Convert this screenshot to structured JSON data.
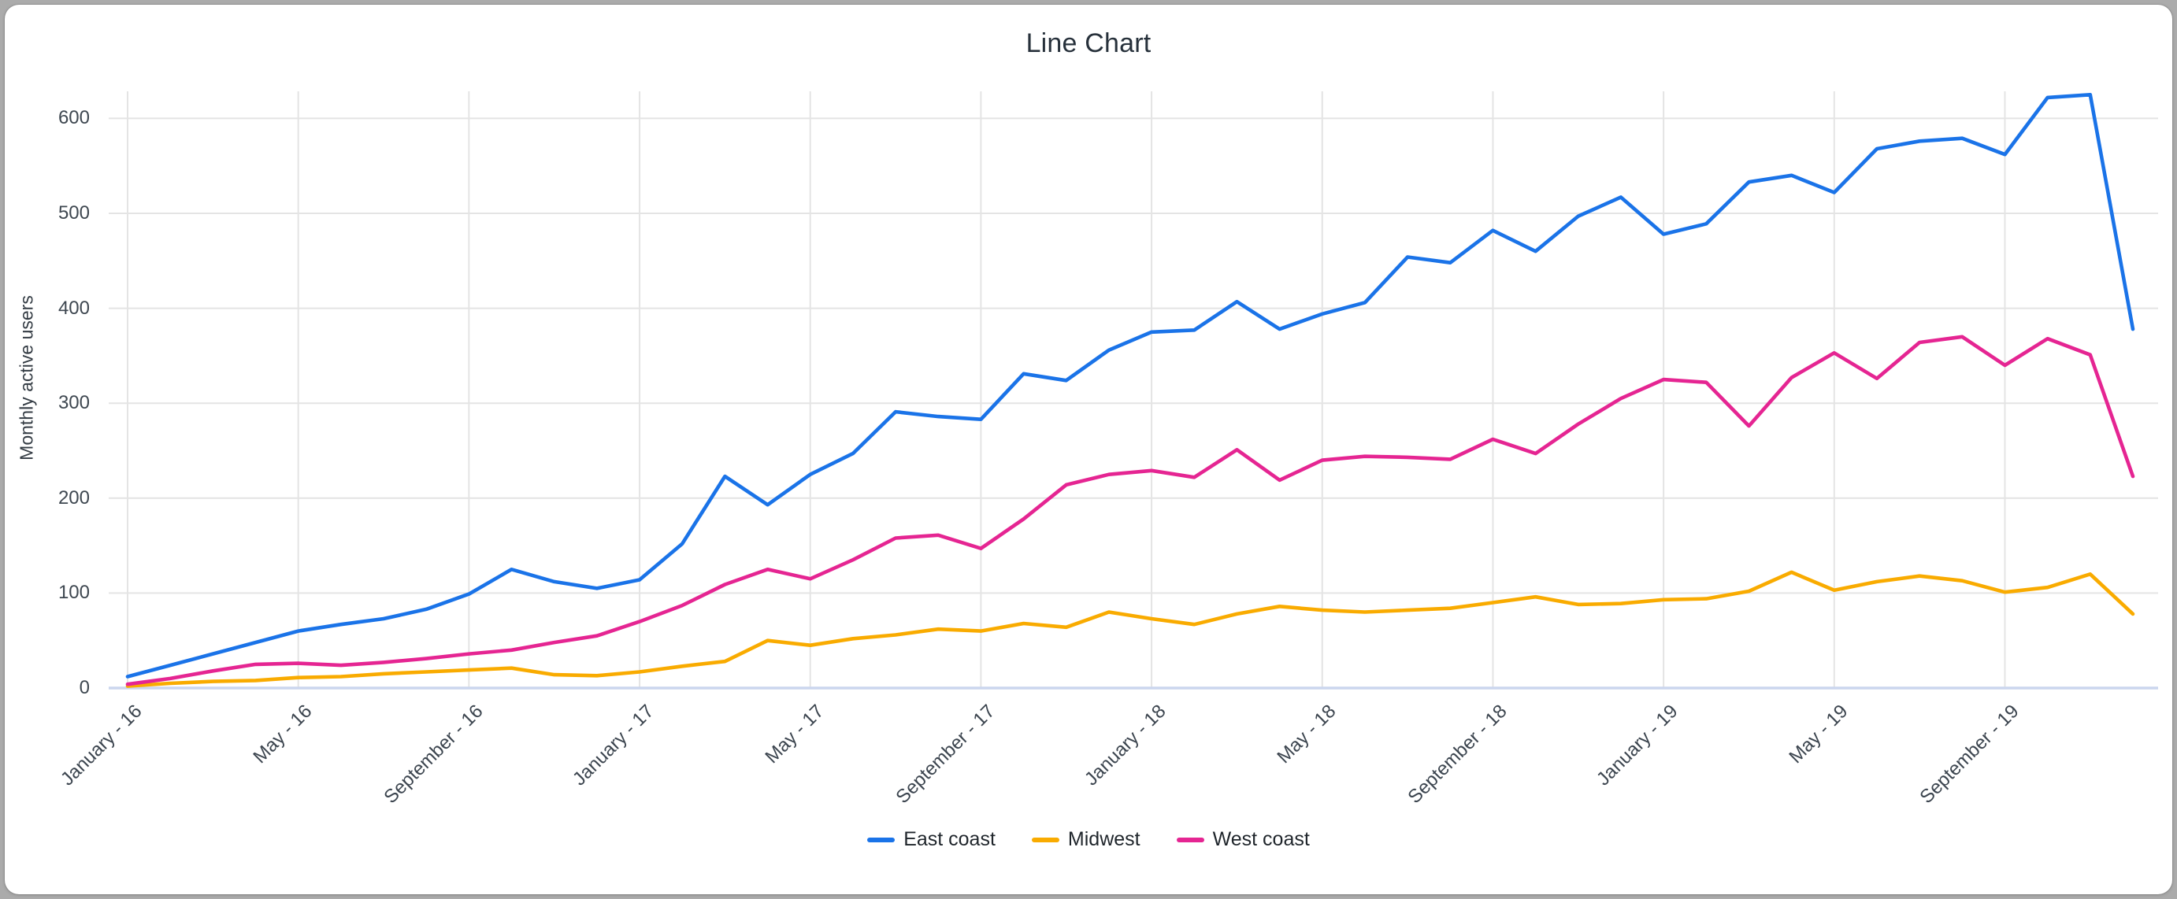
{
  "title": "Line Chart",
  "y_axis": {
    "title": "Monthly active users",
    "ticks": [
      0,
      100,
      200,
      300,
      400,
      500,
      600
    ]
  },
  "x_axis": {
    "tick_labels": [
      "January - 16",
      "May - 16",
      "September - 16",
      "January - 17",
      "May - 17",
      "September - 17",
      "January - 18",
      "May - 18",
      "September - 18",
      "January - 19",
      "May - 19",
      "September - 19"
    ]
  },
  "legend": {
    "items": [
      {
        "label": "East coast",
        "color": "#1A73E8"
      },
      {
        "label": "Midwest",
        "color": "#F9AB00"
      },
      {
        "label": "West coast",
        "color": "#E52592"
      }
    ]
  },
  "style_colors": {
    "gridline": "#e4e4e4",
    "baseline": "#cbd6ee",
    "title_text": "#27313b",
    "tick_text": "#3c454f",
    "card_background": "#ffffff",
    "page_background": "#ababab"
  },
  "chart_data": {
    "type": "line",
    "title": "Line Chart",
    "ylabel": "Monthly active users",
    "xlabel": "",
    "ylim": [
      0,
      628
    ],
    "grid": true,
    "legend_position": "bottom",
    "x_unit": "month",
    "tick_every": 4,
    "months": [
      "2016-01",
      "2016-02",
      "2016-03",
      "2016-04",
      "2016-05",
      "2016-06",
      "2016-07",
      "2016-08",
      "2016-09",
      "2016-10",
      "2016-11",
      "2016-12",
      "2017-01",
      "2017-02",
      "2017-03",
      "2017-04",
      "2017-05",
      "2017-06",
      "2017-07",
      "2017-08",
      "2017-09",
      "2017-10",
      "2017-11",
      "2017-12",
      "2018-01",
      "2018-02",
      "2018-03",
      "2018-04",
      "2018-05",
      "2018-06",
      "2018-07",
      "2018-08",
      "2018-09",
      "2018-10",
      "2018-11",
      "2018-12",
      "2019-01",
      "2019-02",
      "2019-03",
      "2019-04",
      "2019-05",
      "2019-06",
      "2019-07",
      "2019-08",
      "2019-09",
      "2019-10",
      "2019-11",
      "2019-12"
    ],
    "series": [
      {
        "name": "East coast",
        "color": "#1A73E8",
        "values": [
          12,
          24,
          36,
          48,
          60,
          67,
          73,
          83,
          99,
          125,
          112,
          105,
          114,
          152,
          223,
          193,
          225,
          247,
          291,
          286,
          283,
          331,
          324,
          356,
          375,
          377,
          407,
          378,
          394,
          406,
          454,
          448,
          482,
          460,
          497,
          517,
          478,
          489,
          533,
          540,
          522,
          568,
          576,
          579,
          562,
          622,
          625,
          378
        ]
      },
      {
        "name": "Midwest",
        "color": "#F9AB00",
        "values": [
          2,
          5,
          7,
          8,
          11,
          12,
          15,
          17,
          19,
          21,
          14,
          13,
          17,
          23,
          28,
          50,
          45,
          52,
          56,
          62,
          60,
          68,
          64,
          80,
          73,
          67,
          78,
          86,
          82,
          80,
          82,
          84,
          90,
          96,
          88,
          89,
          93,
          94,
          102,
          122,
          103,
          112,
          118,
          113,
          101,
          106,
          120,
          78
        ]
      },
      {
        "name": "West coast",
        "color": "#E52592",
        "values": [
          4,
          10,
          18,
          25,
          26,
          24,
          27,
          31,
          36,
          40,
          48,
          55,
          70,
          87,
          109,
          125,
          115,
          135,
          158,
          161,
          147,
          178,
          214,
          225,
          229,
          222,
          251,
          219,
          240,
          244,
          243,
          241,
          262,
          247,
          278,
          305,
          325,
          322,
          276,
          327,
          353,
          326,
          364,
          370,
          340,
          368,
          351,
          223
        ]
      }
    ]
  }
}
